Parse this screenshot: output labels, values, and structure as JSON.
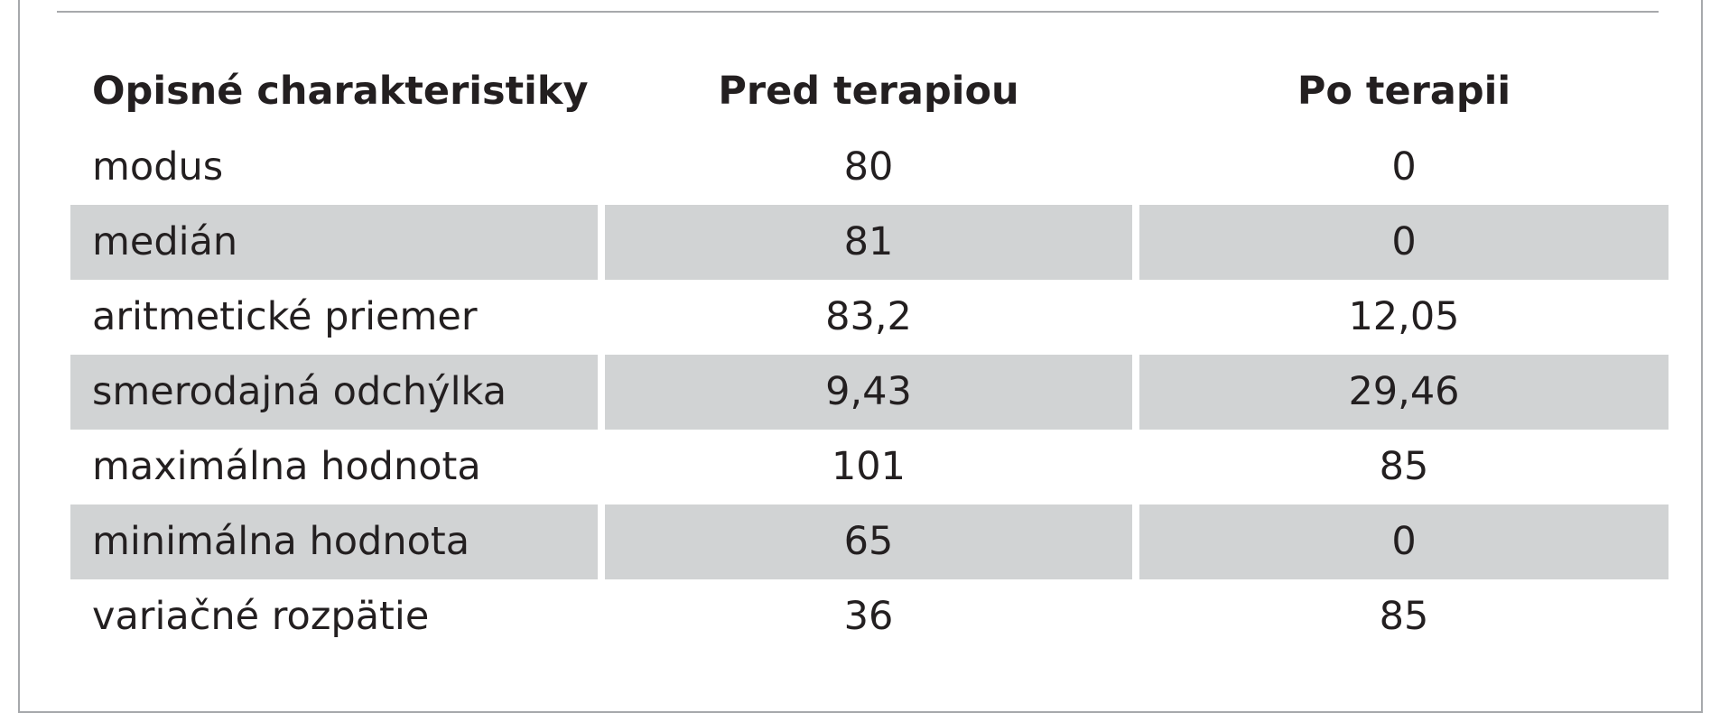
{
  "table": {
    "headers": [
      "Opisné charakteristiky",
      "Pred terapiou",
      "Po terapii"
    ],
    "rows": [
      {
        "label": "modus",
        "before": "80",
        "after": "0"
      },
      {
        "label": "medián",
        "before": "81",
        "after": "0"
      },
      {
        "label": "aritmetické priemer",
        "before": "83,2",
        "after": "12,05"
      },
      {
        "label": "smerodajná odchýlka",
        "before": "9,43",
        "after": "29,46"
      },
      {
        "label": "maximálna hodnota",
        "before": "101",
        "after": "85"
      },
      {
        "label": "minimálna hodnota",
        "before": "65",
        "after": "0"
      },
      {
        "label": "variačné rozpätie",
        "before": "36",
        "after": "85"
      }
    ]
  },
  "colors": {
    "shaded_row": "#d1d3d4",
    "rule": "#a7a9ac",
    "text": "#231f20"
  }
}
